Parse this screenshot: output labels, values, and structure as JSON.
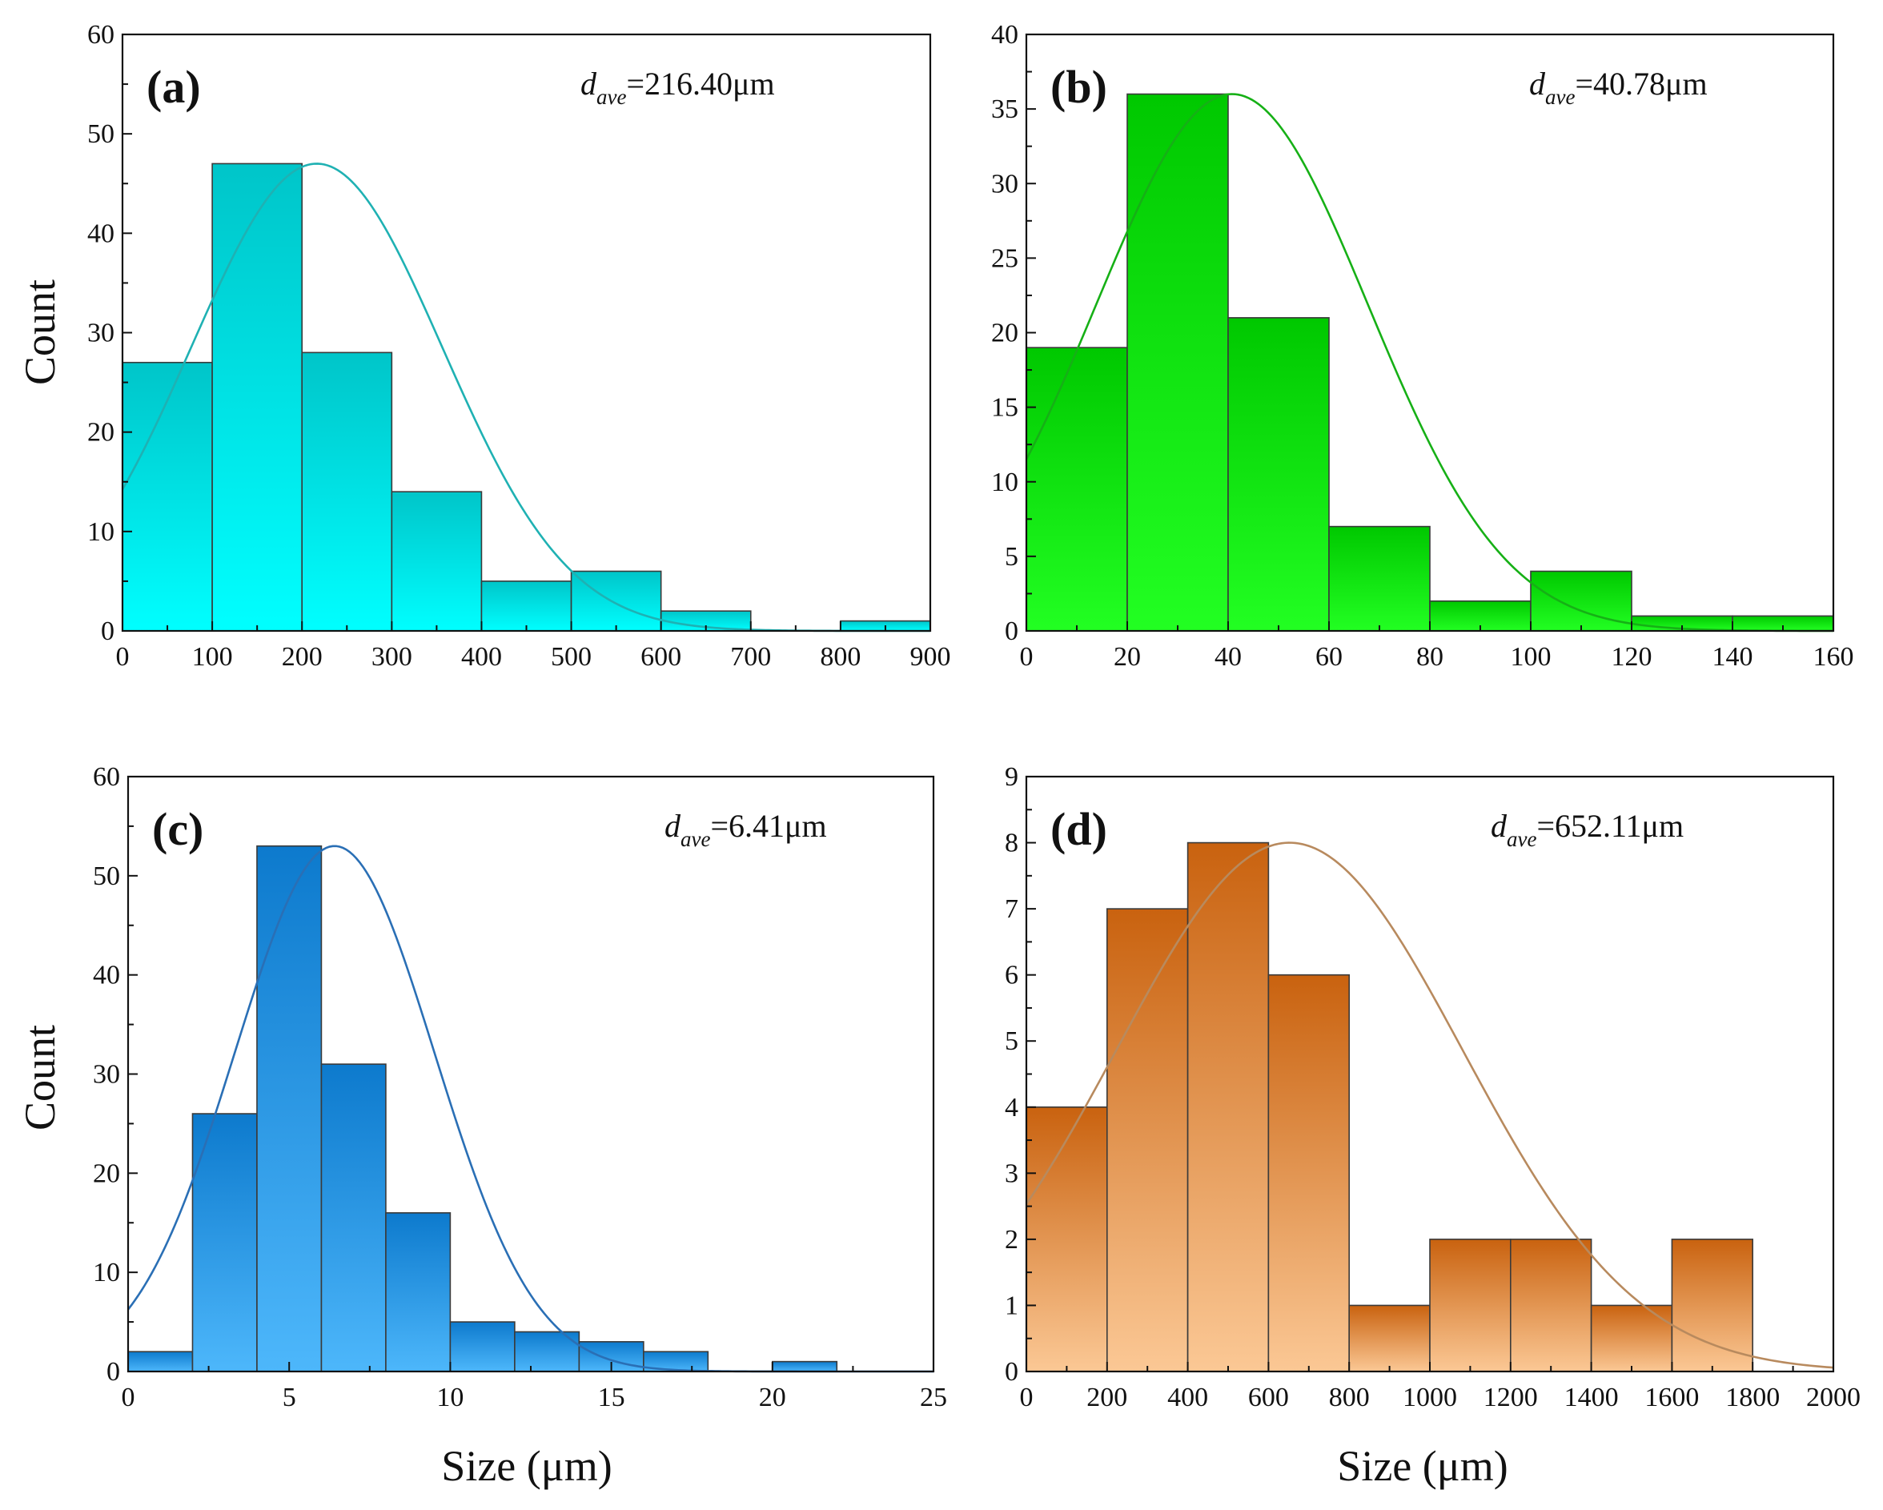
{
  "figure": {
    "ylabel": "Count",
    "xlabel": "Size (μm)"
  },
  "chart_data": [
    {
      "id": "a",
      "type": "bar",
      "panel_label": "(a)",
      "dave_symbol": "d",
      "dave_subscript": "ave",
      "dave_value": "=216.40μm",
      "bin_edges": [
        0,
        100,
        200,
        300,
        400,
        500,
        600,
        700,
        800,
        900
      ],
      "values": [
        27,
        47,
        28,
        14,
        5,
        6,
        2,
        0,
        1
      ],
      "xlim": [
        0,
        900
      ],
      "ylim": [
        0,
        60
      ],
      "xticks": [
        "0",
        "100",
        "200",
        "300",
        "400",
        "500",
        "600",
        "700",
        "800",
        "900"
      ],
      "yticks": [
        "0",
        "10",
        "20",
        "30",
        "40",
        "50",
        "60"
      ],
      "fit": {
        "type": "normal",
        "mean": 216.4,
        "sd": 140,
        "peak": 47
      },
      "colors": {
        "top": "#00c5c9",
        "bottom": "#00ffff",
        "curve": "#1fb1b3"
      }
    },
    {
      "id": "b",
      "type": "bar",
      "panel_label": "(b)",
      "dave_symbol": "d",
      "dave_subscript": "ave",
      "dave_value": "=40.78μm",
      "bin_edges": [
        0,
        20,
        40,
        60,
        80,
        100,
        120,
        140,
        160
      ],
      "values": [
        19,
        36,
        21,
        7,
        2,
        4,
        1,
        1
      ],
      "xlim": [
        0,
        160
      ],
      "ylim": [
        0,
        40
      ],
      "xticks": [
        "0",
        "20",
        "40",
        "60",
        "80",
        "100",
        "120",
        "140",
        "160"
      ],
      "yticks": [
        "0",
        "5",
        "10",
        "15",
        "20",
        "25",
        "30",
        "35",
        "40"
      ],
      "fit": {
        "type": "normal",
        "mean": 40.78,
        "sd": 27,
        "peak": 36
      },
      "colors": {
        "top": "#00c800",
        "bottom": "#22ff22",
        "curve": "#16b016"
      }
    },
    {
      "id": "c",
      "type": "bar",
      "panel_label": "(c)",
      "dave_symbol": "d",
      "dave_subscript": "ave",
      "dave_value": "=6.41μm",
      "bin_edges": [
        0,
        2,
        4,
        6,
        8,
        10,
        12,
        14,
        16,
        18,
        20,
        22
      ],
      "values": [
        2,
        26,
        53,
        31,
        16,
        5,
        4,
        3,
        2,
        0,
        1
      ],
      "xlim": [
        0,
        25
      ],
      "ylim": [
        0,
        60
      ],
      "xticks": [
        "0",
        "5",
        "10",
        "15",
        "20",
        "25"
      ],
      "yticks": [
        "0",
        "10",
        "20",
        "30",
        "40",
        "50",
        "60"
      ],
      "fit": {
        "type": "normal",
        "mean": 6.41,
        "sd": 3.1,
        "peak": 53
      },
      "colors": {
        "top": "#0d7acd",
        "bottom": "#4db7fb",
        "curve": "#2a6fb5"
      }
    },
    {
      "id": "d",
      "type": "bar",
      "panel_label": "(d)",
      "dave_symbol": "d",
      "dave_subscript": "ave",
      "dave_value": "=652.11μm",
      "bin_edges": [
        0,
        200,
        400,
        600,
        800,
        1000,
        1200,
        1400,
        1600,
        1800
      ],
      "values": [
        4,
        7,
        8,
        6,
        1,
        2,
        2,
        1,
        2
      ],
      "xlim": [
        0,
        2000
      ],
      "ylim": [
        0,
        9
      ],
      "xticks": [
        "0",
        "200",
        "400",
        "600",
        "800",
        "1000",
        "1200",
        "1400",
        "1600",
        "1800",
        "2000"
      ],
      "yticks": [
        "0",
        "1",
        "2",
        "3",
        "4",
        "5",
        "6",
        "7",
        "8",
        "9"
      ],
      "fit": {
        "type": "normal",
        "mean": 652.11,
        "sd": 430,
        "peak": 8
      },
      "colors": {
        "top": "#c9620f",
        "bottom": "#fbc895",
        "curve": "#b88a5e"
      }
    }
  ]
}
